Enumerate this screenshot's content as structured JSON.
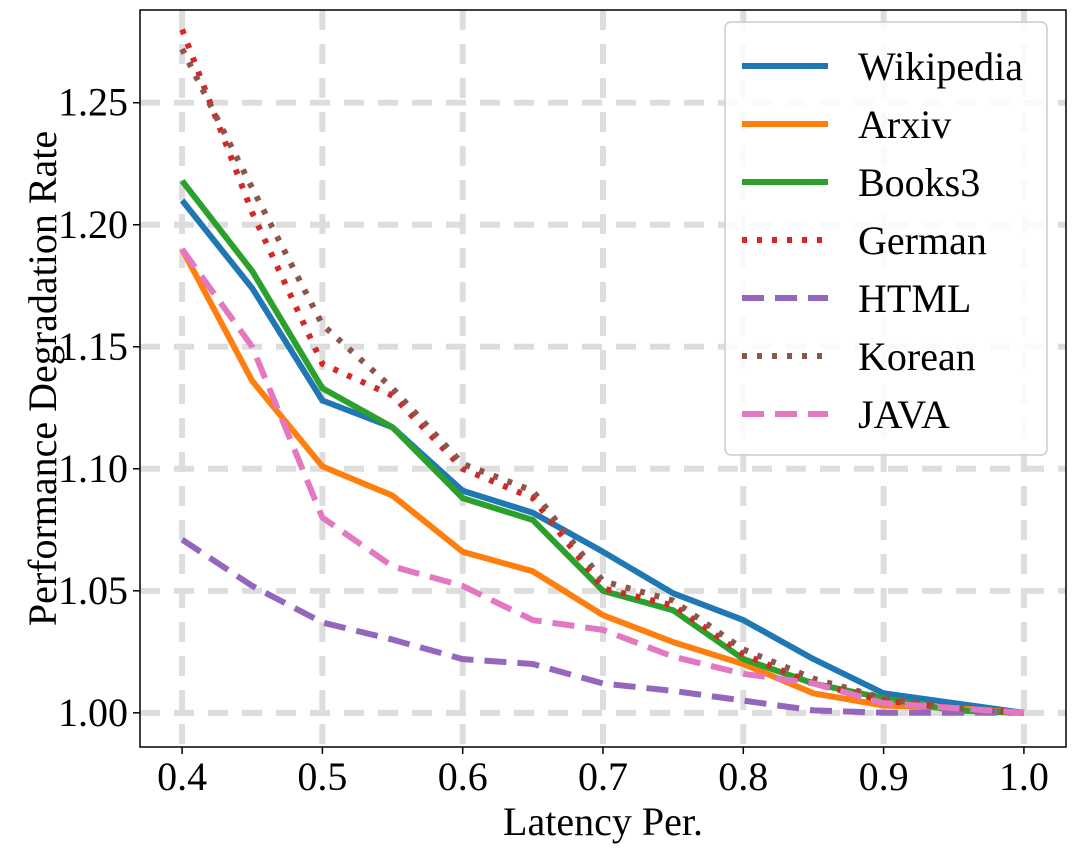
{
  "chart_data": {
    "type": "line",
    "title": "",
    "xlabel": "Latency Per.",
    "ylabel": "Performance Degradation Rate",
    "x": [
      0.4,
      0.45,
      0.5,
      0.55,
      0.6,
      0.65,
      0.7,
      0.75,
      0.8,
      0.85,
      0.9,
      0.95,
      1.0
    ],
    "xlim": [
      0.37,
      1.03
    ],
    "ylim": [
      0.986,
      1.288
    ],
    "xticks": [
      0.4,
      0.5,
      0.6,
      0.7,
      0.8,
      0.9,
      1.0
    ],
    "xtick_labels": [
      "0.4",
      "0.5",
      "0.6",
      "0.7",
      "0.8",
      "0.9",
      "1.0"
    ],
    "yticks": [
      1.0,
      1.05,
      1.1,
      1.15,
      1.2,
      1.25
    ],
    "ytick_labels": [
      "1.00",
      "1.05",
      "1.10",
      "1.15",
      "1.20",
      "1.25"
    ],
    "grid": true,
    "legend_position": "top-right",
    "series": [
      {
        "name": "Wikipedia",
        "color": "#1f77b4",
        "style": "solid",
        "values": [
          1.21,
          1.174,
          1.128,
          1.117,
          1.091,
          1.082,
          1.066,
          1.049,
          1.038,
          1.022,
          1.008,
          1.004,
          1.0
        ]
      },
      {
        "name": "Arxiv",
        "color": "#ff7f0e",
        "style": "solid",
        "values": [
          1.19,
          1.136,
          1.101,
          1.089,
          1.066,
          1.058,
          1.04,
          1.029,
          1.02,
          1.008,
          1.003,
          1.002,
          1.0
        ]
      },
      {
        "name": "Books3",
        "color": "#2ca02c",
        "style": "solid",
        "values": [
          1.218,
          1.181,
          1.133,
          1.117,
          1.088,
          1.079,
          1.05,
          1.042,
          1.022,
          1.012,
          1.006,
          1.001,
          1.0
        ]
      },
      {
        "name": "German",
        "color": "#d62728",
        "style": "dotted",
        "values": [
          1.28,
          1.205,
          1.143,
          1.13,
          1.1,
          1.088,
          1.051,
          1.044,
          1.024,
          1.012,
          1.005,
          1.002,
          1.0
        ]
      },
      {
        "name": "HTML",
        "color": "#9467bd",
        "style": "dashed",
        "values": [
          1.071,
          1.052,
          1.037,
          1.03,
          1.022,
          1.02,
          1.012,
          1.009,
          1.005,
          1.001,
          1.0,
          1.0,
          1.0
        ]
      },
      {
        "name": "Korean",
        "color": "#8c564b",
        "style": "dotted",
        "values": [
          1.272,
          1.215,
          1.159,
          1.133,
          1.102,
          1.091,
          1.054,
          1.046,
          1.026,
          1.014,
          1.006,
          1.002,
          1.0
        ]
      },
      {
        "name": "JAVA",
        "color": "#e377c2",
        "style": "dashed",
        "values": [
          1.19,
          1.15,
          1.08,
          1.06,
          1.052,
          1.038,
          1.034,
          1.023,
          1.016,
          1.012,
          1.004,
          1.002,
          1.0
        ]
      }
    ]
  }
}
